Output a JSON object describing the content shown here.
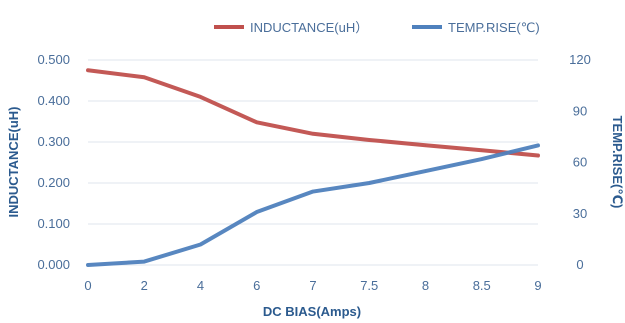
{
  "chart_data": {
    "type": "line",
    "title": "",
    "xlabel": "DC BIAS(Amps)",
    "ylabel": "INDUCTANCE(uH)",
    "y2label": "TEMP.RISE(℃)",
    "categories": [
      "0",
      "2",
      "4",
      "6",
      "7",
      "7.5",
      "8",
      "8.5",
      "9"
    ],
    "ylim": [
      0,
      0.5
    ],
    "y2lim": [
      0,
      120
    ],
    "y_ticks": [
      "0.000",
      "0.100",
      "0.200",
      "0.300",
      "0.400",
      "0.500"
    ],
    "y2_ticks": [
      "0",
      "30",
      "60",
      "90",
      "120"
    ],
    "grid": true,
    "legend": "top",
    "series": [
      {
        "name": "INDUCTANCE(uH）",
        "axis": "left",
        "color": "#c0504d",
        "values": [
          0.475,
          0.458,
          0.41,
          0.348,
          0.32,
          0.305,
          0.292,
          0.28,
          0.267
        ]
      },
      {
        "name": "TEMP.RISE(℃)",
        "axis": "right",
        "color": "#4f81bd",
        "values": [
          0,
          2,
          12,
          31,
          43,
          48,
          55,
          62,
          70
        ]
      }
    ]
  }
}
